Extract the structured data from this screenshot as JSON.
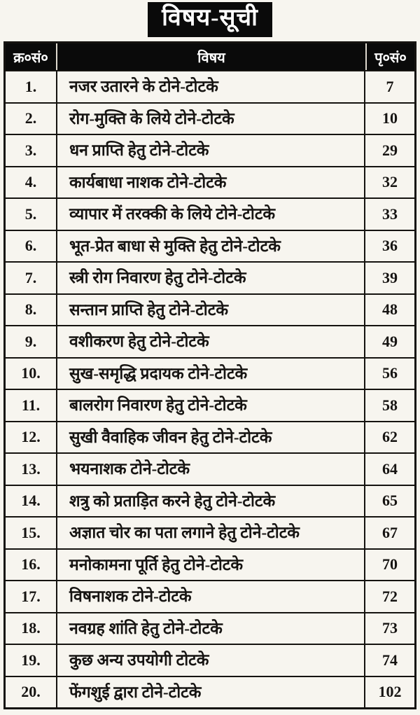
{
  "title": "विषय-सूची",
  "colors": {
    "ink": "#161412",
    "paper": "#f7f5ef",
    "header-bg": "#0a0a0a",
    "header-fg": "#ffffff"
  },
  "table": {
    "headers": {
      "serial": "क्र०सं०",
      "subject": "विषय",
      "page": "पृ०सं०"
    },
    "rows": [
      {
        "serial": "1.",
        "subject": "नजर उतारने के टोने-टोटके",
        "page": "7"
      },
      {
        "serial": "2.",
        "subject": "रोग-मुक्ति के लिये टोने-टोटके",
        "page": "10"
      },
      {
        "serial": "3.",
        "subject": "धन प्राप्ति हेतु टोने-टोटके",
        "page": "29"
      },
      {
        "serial": "4.",
        "subject": "कार्यबाधा नाशक टोने-टोटके",
        "page": "32"
      },
      {
        "serial": "5.",
        "subject": "व्यापार में तरक्की के लिये टोने-टोटके",
        "page": "33"
      },
      {
        "serial": "6.",
        "subject": "भूत-प्रेत बाधा से मुक्ति हेतु टोने-टोटके",
        "page": "36"
      },
      {
        "serial": "7.",
        "subject": "स्त्री रोग निवारण हेतु टोने-टोटके",
        "page": "39"
      },
      {
        "serial": "8.",
        "subject": "सन्तान प्राप्ति हेतु टोने-टोटके",
        "page": "48"
      },
      {
        "serial": "9.",
        "subject": "वशीकरण हेतु टोने-टोटके",
        "page": "49"
      },
      {
        "serial": "10.",
        "subject": "सुख-समृद्धि प्रदायक टोने-टोटके",
        "page": "56"
      },
      {
        "serial": "11.",
        "subject": "बालरोग निवारण हेतु टोने-टोटके",
        "page": "58"
      },
      {
        "serial": "12.",
        "subject": "सुखी वैवाहिक जीवन हेतु टोने-टोटके",
        "page": "62"
      },
      {
        "serial": "13.",
        "subject": "भयनाशक टोने-टोटके",
        "page": "64"
      },
      {
        "serial": "14.",
        "subject": "शत्रु को प्रताड़ित करने हेतु टोने-टोटके",
        "page": "65"
      },
      {
        "serial": "15.",
        "subject": "अज्ञात चोर का पता लगाने हेतु टोने-टोटके",
        "page": "67"
      },
      {
        "serial": "16.",
        "subject": "मनोकामना पूर्ति हेतु टोने-टोटके",
        "page": "70"
      },
      {
        "serial": "17.",
        "subject": "विषनाशक टोने-टोटके",
        "page": "72"
      },
      {
        "serial": "18.",
        "subject": "नवग्रह शांति हेतु टोने-टोटके",
        "page": "73"
      },
      {
        "serial": "19.",
        "subject": "कुछ अन्य उपयोगी टोटके",
        "page": "74"
      },
      {
        "serial": "20.",
        "subject": "फेंगशुई द्वारा टोने-टोटके",
        "page": "102"
      }
    ]
  }
}
